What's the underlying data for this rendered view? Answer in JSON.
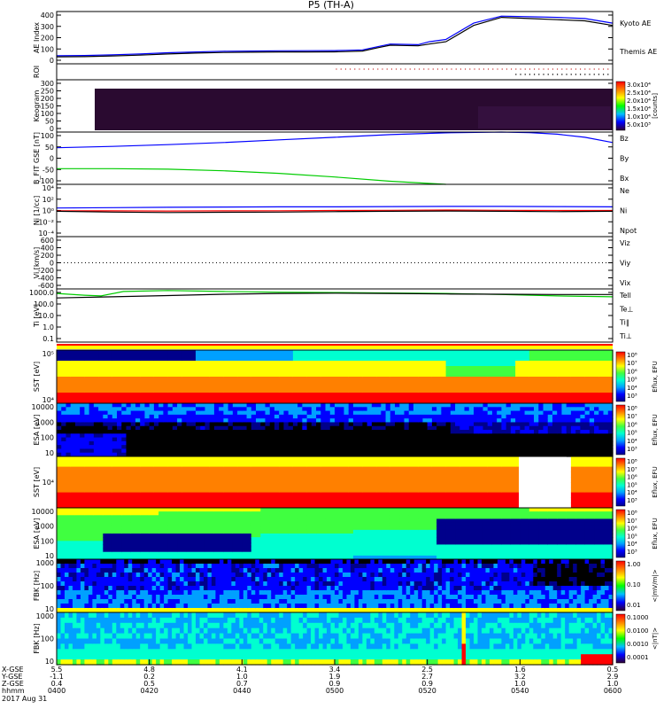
{
  "header": {
    "title": "P5 (TH-A)"
  },
  "colors": {
    "blue": "#0000ff",
    "red": "#ff0000",
    "green": "#00cc00",
    "black": "#000000",
    "navy": "#00008b"
  },
  "chart_data": [
    {
      "type": "line",
      "name": "ae",
      "ylabel": "AE Index",
      "ylim": [
        -50,
        400
      ],
      "yticks": [
        "400",
        "300",
        "200",
        "100",
        "0"
      ],
      "legend": [
        "Kyoto AE",
        "Themis AE"
      ],
      "series": [
        {
          "name": "Kyoto AE",
          "color": "#0000ff",
          "x": [
            0,
            5,
            10,
            15,
            20,
            25,
            30,
            35,
            40,
            45,
            50,
            52,
            55,
            58,
            60,
            62,
            65,
            67,
            70,
            75,
            80,
            85,
            90,
            95,
            100
          ],
          "y": [
            20,
            22,
            28,
            35,
            45,
            52,
            58,
            60,
            62,
            63,
            64,
            66,
            70,
            100,
            120,
            118,
            115,
            140,
            160,
            300,
            360,
            355,
            350,
            340,
            300
          ]
        },
        {
          "name": "Themis AE",
          "color": "#000000",
          "x": [
            0,
            5,
            10,
            15,
            20,
            25,
            30,
            35,
            40,
            45,
            50,
            52,
            55,
            58,
            60,
            62,
            65,
            67,
            70,
            75,
            80,
            85,
            90,
            95,
            100
          ],
          "y": [
            10,
            12,
            18,
            25,
            35,
            42,
            48,
            50,
            52,
            52,
            53,
            55,
            60,
            90,
            110,
            108,
            105,
            120,
            140,
            280,
            350,
            340,
            330,
            320,
            280
          ]
        }
      ]
    },
    {
      "type": "scatter",
      "name": "roi",
      "ylabel": "ROI"
    },
    {
      "type": "heatmap",
      "name": "keogram",
      "ylabel": "Keogram",
      "ylim": [
        0,
        300
      ],
      "yticks": [
        "300",
        "250",
        "200",
        "150",
        "100",
        "50",
        "0"
      ],
      "colorbar_ticks": [
        "3.0x10⁴",
        "2.5x10⁴",
        "2.0x10⁴",
        "1.5x10⁴",
        "1.0x10⁴",
        "5.0x10³"
      ],
      "colorbar_label": "[counts]"
    },
    {
      "type": "line",
      "name": "bfield",
      "ylabel": "B_FIT GSE [nT]",
      "ylim": [
        -100,
        100
      ],
      "yticks": [
        "100",
        "50",
        "0",
        "-50",
        "-100"
      ],
      "legend": [
        "Bz",
        "By",
        "Bx"
      ],
      "series": [
        {
          "name": "Bz",
          "color": "#ff0000",
          "x": [],
          "y": []
        },
        {
          "name": "By",
          "color": "#00cc00",
          "x": [
            0,
            10,
            20,
            30,
            40,
            50,
            60,
            70
          ],
          "y": [
            -40,
            -40,
            -42,
            -48,
            -58,
            -72,
            -88,
            -100
          ]
        },
        {
          "name": "Bx",
          "color": "#0000ff",
          "x": [
            0,
            10,
            20,
            30,
            40,
            50,
            60,
            70,
            80,
            85,
            90,
            95,
            100
          ],
          "y": [
            40,
            45,
            52,
            60,
            70,
            80,
            90,
            97,
            100,
            98,
            92,
            80,
            60
          ]
        }
      ]
    },
    {
      "type": "line",
      "name": "density",
      "ylabel": "Ni [1/cc]",
      "ylog": true,
      "yticks": [
        "10⁻⁴",
        "10⁻²",
        "10⁰",
        "10²",
        "10⁴"
      ],
      "legend": [
        "Ne",
        "Ni",
        "Npot"
      ],
      "series": [
        {
          "name": "Ne",
          "color": "#ff0000",
          "x": [
            0,
            10,
            20,
            30,
            40,
            50,
            60,
            70,
            80,
            90,
            100
          ],
          "y": [
            0.9,
            0.85,
            0.8,
            0.85,
            0.9,
            1,
            1.1,
            1.2,
            1.1,
            1,
            1
          ]
        },
        {
          "name": "Ni",
          "color": "#0000ff",
          "x": [
            0,
            10,
            20,
            30,
            40,
            50,
            60,
            70,
            80,
            90,
            100
          ],
          "y": [
            3,
            3.5,
            4,
            4.5,
            5,
            5,
            5.5,
            6,
            6,
            5.5,
            5
          ]
        },
        {
          "name": "Npot",
          "color": "#000000",
          "x": [
            0,
            10,
            20,
            30,
            40,
            50,
            60,
            70,
            80,
            90,
            100
          ],
          "y": [
            0.7,
            0.5,
            0.4,
            0.45,
            0.5,
            0.6,
            0.7,
            0.8,
            0.7,
            0.6,
            0.7
          ]
        }
      ]
    },
    {
      "type": "line",
      "name": "velocity",
      "ylabel": "Vi [km/s]",
      "ylim": [
        -700,
        700
      ],
      "yticks": [
        "600",
        "400",
        "200",
        "0",
        "-200",
        "-400",
        "-600"
      ],
      "legend": [
        "Viz",
        "Viy",
        "Vix"
      ]
    },
    {
      "type": "line",
      "name": "temperature",
      "ylabel": "Ti [eV]",
      "ylog": true,
      "yticks": [
        "1000.0",
        "100.0",
        "10.0",
        "1.0",
        "0.1"
      ],
      "legend": [
        "Tell",
        "Te⊥",
        "Ti∥",
        "Ti⊥"
      ],
      "series": [
        {
          "name": "Ti∥",
          "color": "#00cc00",
          "x": [
            0,
            5,
            8,
            12,
            20,
            30,
            40,
            50,
            60,
            70,
            80,
            90,
            100
          ],
          "y": [
            1000,
            700,
            600,
            1500,
            1800,
            1500,
            1300,
            1200,
            1100,
            1000,
            800,
            600,
            500
          ]
        },
        {
          "name": "Tell",
          "color": "#000000",
          "x": [
            0,
            10,
            20,
            30,
            40,
            50,
            60,
            70,
            80,
            90,
            100
          ],
          "y": [
            400,
            500,
            650,
            850,
            1000,
            1050,
            1000,
            900,
            850,
            800,
            800
          ]
        }
      ]
    },
    {
      "type": "heatmap",
      "name": "sst-ion",
      "ylabel": "SST [eV]",
      "yticks": [
        "10⁵",
        "10⁴"
      ],
      "colorbar_ticks": [
        "10⁸",
        "10⁷",
        "10⁶",
        "10⁵",
        "10⁴",
        "10³"
      ],
      "colorbar_label": "Eflux, EFU"
    },
    {
      "type": "heatmap",
      "name": "esa-ion",
      "ylabel": "ESA [eV]",
      "yticks": [
        "10000",
        "1000",
        "100",
        "10"
      ],
      "colorbar_ticks": [
        "10⁸",
        "10⁷",
        "10⁶",
        "10⁵",
        "10⁴",
        "10³"
      ],
      "colorbar_label": "Eflux, EFU"
    },
    {
      "type": "heatmap",
      "name": "sst-electron",
      "ylabel": "SST [eV]",
      "yticks": [
        "10⁴"
      ],
      "colorbar_ticks": [
        "10⁸",
        "10⁷",
        "10⁶",
        "10⁵",
        "10⁴",
        "10³"
      ],
      "colorbar_label": "Eflux, EFU"
    },
    {
      "type": "heatmap",
      "name": "esa-electron",
      "ylabel": "ESA [eV]",
      "yticks": [
        "10000",
        "1000",
        "100",
        "10"
      ],
      "colorbar_ticks": [
        "10⁸",
        "10⁷",
        "10⁶",
        "10⁵",
        "10⁴",
        "10³"
      ],
      "colorbar_label": "Eflux, EFU"
    },
    {
      "type": "heatmap",
      "name": "fbk-e",
      "ylabel": "FBK [Hz]",
      "yticks": [
        "1000",
        "100",
        "10"
      ],
      "colorbar_ticks": [
        "1.00",
        "0.10",
        "0.01"
      ],
      "colorbar_label": "<|mV/m|>"
    },
    {
      "type": "heatmap",
      "name": "fbk-b",
      "ylabel": "FBK [Hz]",
      "yticks": [
        "1000",
        "100",
        "10"
      ],
      "colorbar_ticks": [
        "0.1000",
        "0.0100",
        "0.0010",
        "0.0001"
      ],
      "colorbar_label": "<|nT|>"
    }
  ],
  "xaxis": {
    "row_labels": [
      "X-GSE",
      "Y-GSE",
      "Z-GSE",
      "hhmm",
      "2017 Aug 31"
    ],
    "ticks": [
      {
        "x": "5.5",
        "y": "-1.1",
        "z": "0.4",
        "t": "0400"
      },
      {
        "x": "4.8",
        "y": "0.2",
        "z": "0.5",
        "t": "0420"
      },
      {
        "x": "4.1",
        "y": "1.0",
        "z": "0.7",
        "t": "0440"
      },
      {
        "x": "3.4",
        "y": "1.9",
        "z": "0.9",
        "t": "0500"
      },
      {
        "x": "2.5",
        "y": "2.7",
        "z": "0.9",
        "t": "0520"
      },
      {
        "x": "1.6",
        "y": "3.2",
        "z": "1.0",
        "t": "0540"
      },
      {
        "x": "0.5",
        "y": "2.9",
        "z": "1.0",
        "t": "0600"
      }
    ]
  }
}
